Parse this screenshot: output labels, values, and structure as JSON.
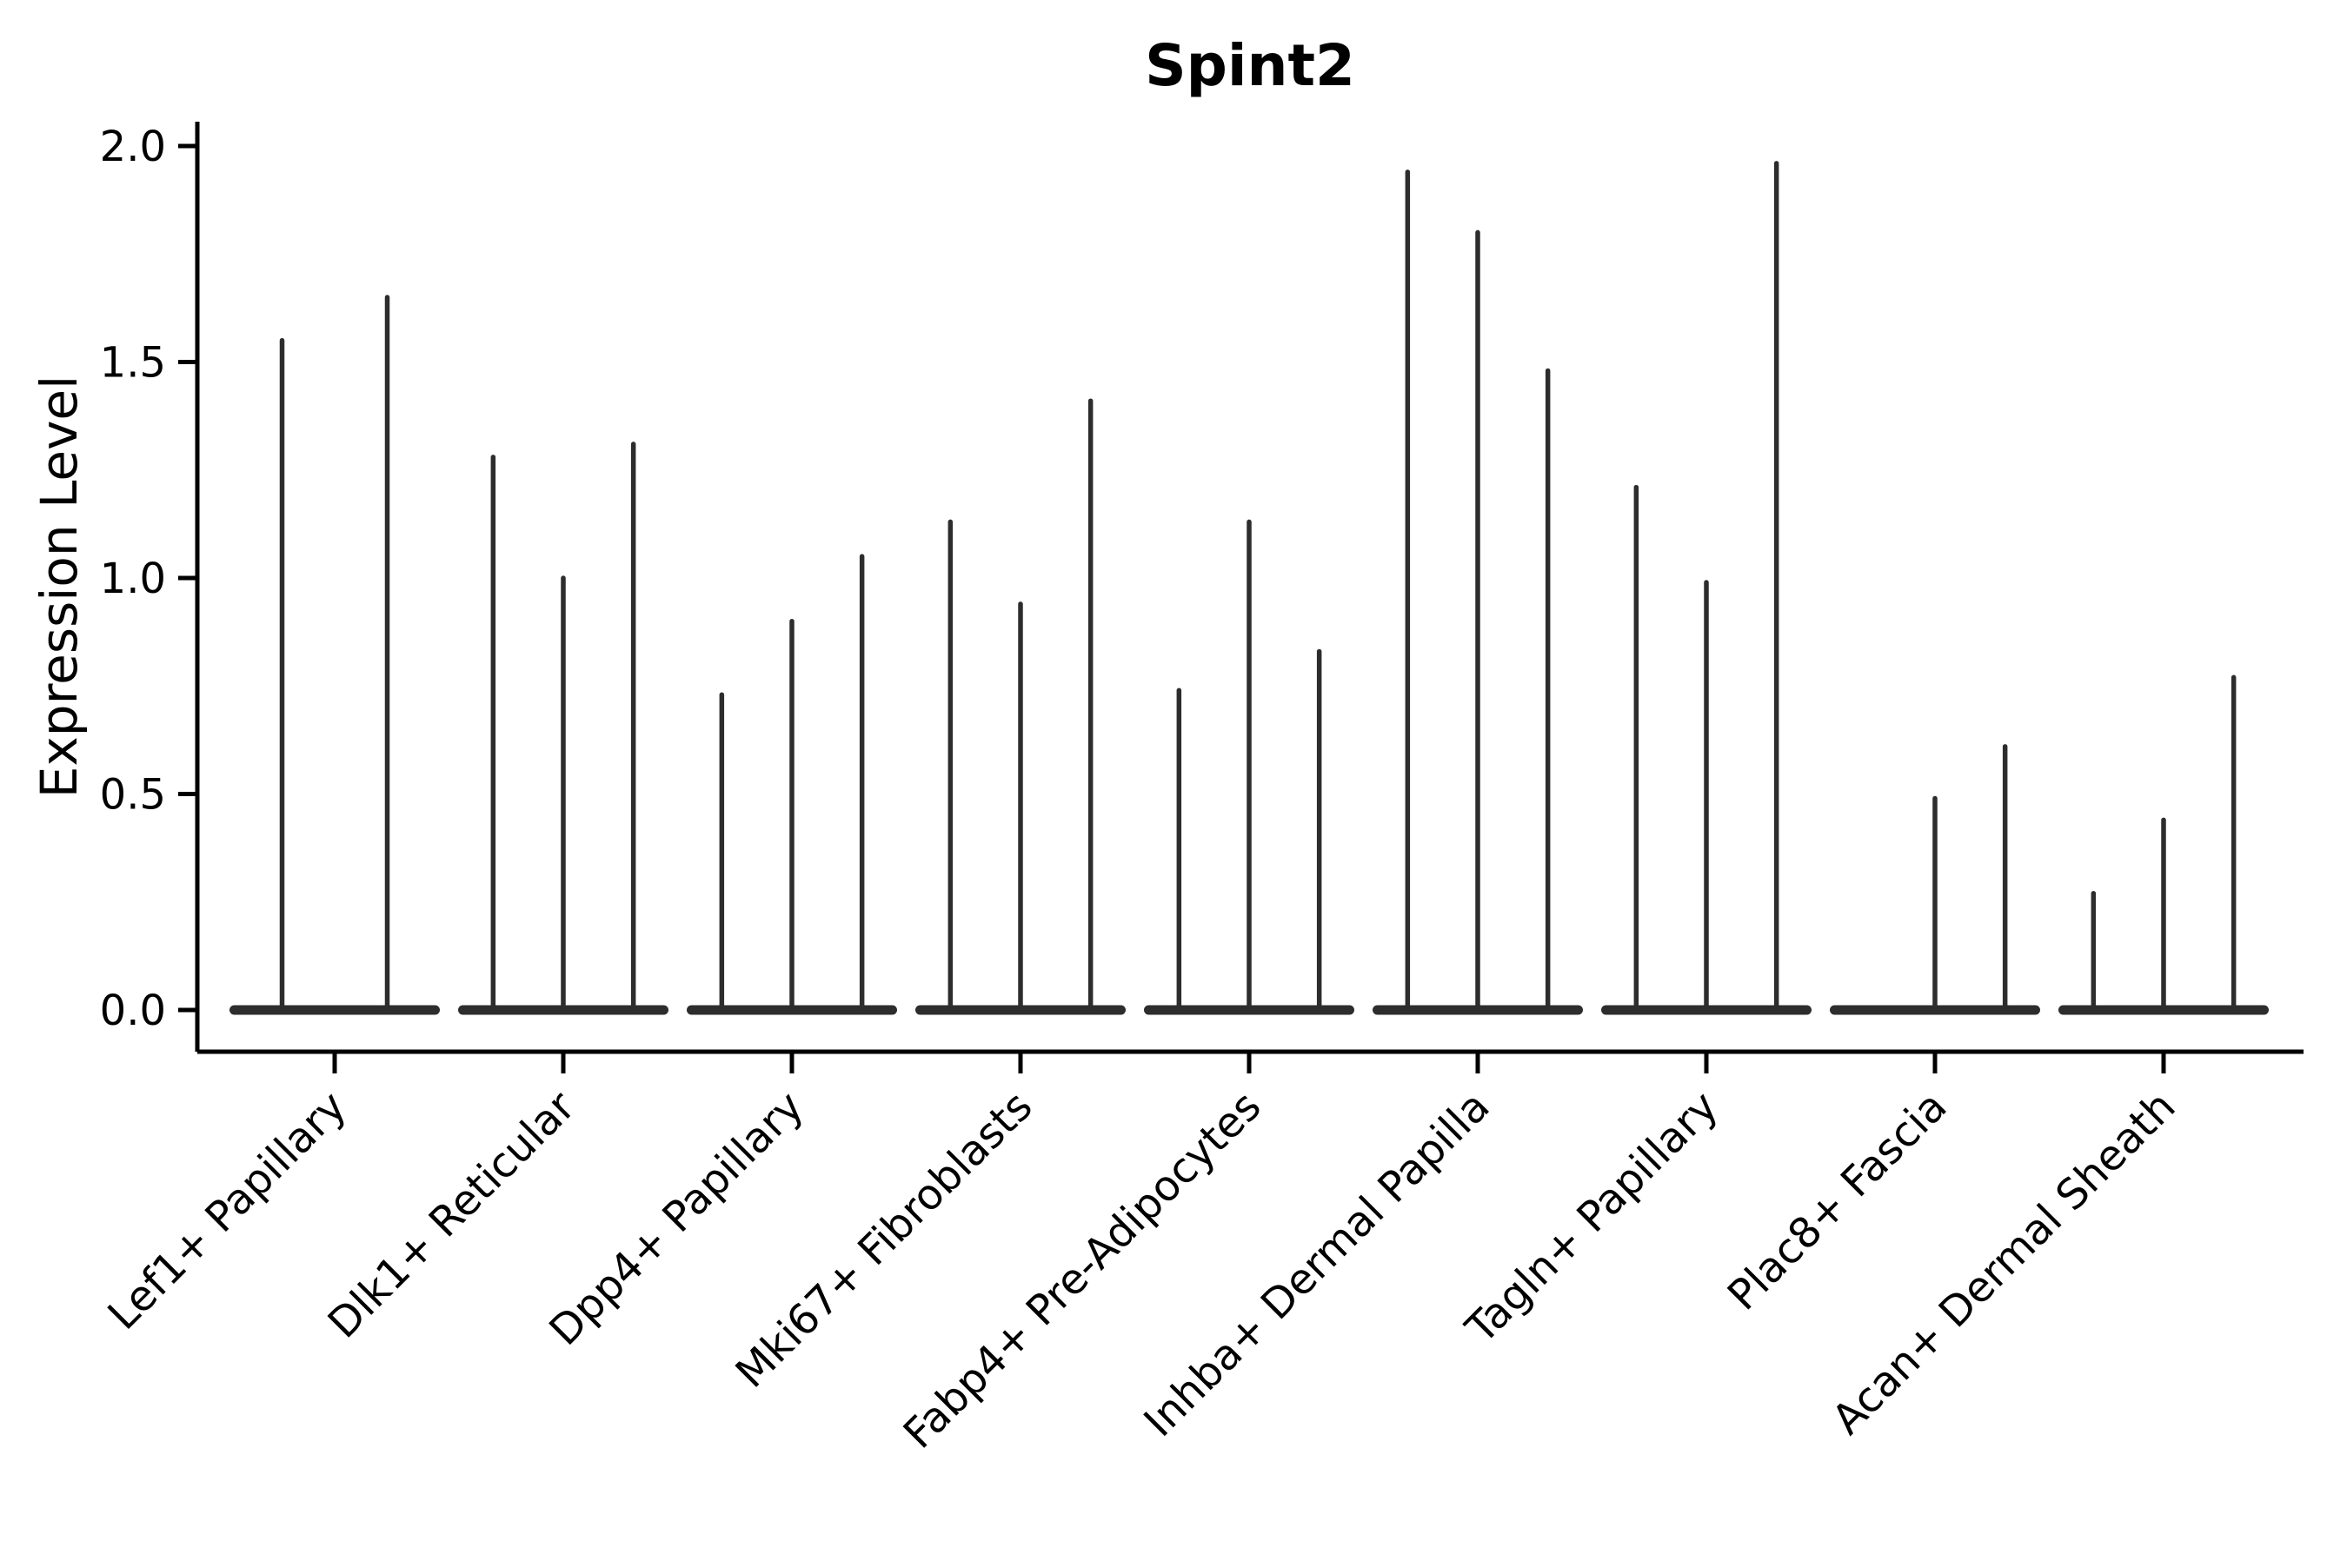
{
  "chart_data": {
    "type": "violin",
    "title": "Spint2",
    "xlabel": "",
    "ylabel": "Expression Level",
    "yticks": [
      0.0,
      0.5,
      1.0,
      1.5,
      2.0
    ],
    "ylim": [
      -0.1,
      2.05
    ],
    "grid": false,
    "legend": "none",
    "background_color": "#ffffff",
    "violin_color": "#2d2d2d",
    "axis_color": "#000000",
    "categories": [
      "Lef1+ Papillary",
      "Dlk1+ Reticular",
      "Dpp4+ Papillary",
      "Mki67+ Fibroblasts",
      "Fabp4+ Pre-Adipocytes",
      "Inhba+ Dermal Papilla",
      "Tagln+ Papillary",
      "Plac8+ Fascia",
      "Acan+ Dermal Sheath"
    ],
    "groups": [
      {
        "category": "Lef1+ Papillary",
        "violin_max_expression": [
          1.55,
          1.65
        ]
      },
      {
        "category": "Dlk1+ Reticular",
        "violin_max_expression": [
          1.28,
          1.0,
          1.31
        ]
      },
      {
        "category": "Dpp4+ Papillary",
        "violin_max_expression": [
          0.73,
          0.9,
          1.05
        ]
      },
      {
        "category": "Mki67+ Fibroblasts",
        "violin_max_expression": [
          1.13,
          0.94,
          1.41
        ]
      },
      {
        "category": "Fabp4+ Pre-Adipocytes",
        "violin_max_expression": [
          0.74,
          1.13,
          0.83
        ]
      },
      {
        "category": "Inhba+ Dermal Papilla",
        "violin_max_expression": [
          1.94,
          1.8,
          1.48
        ]
      },
      {
        "category": "Tagln+ Papillary",
        "violin_max_expression": [
          1.21,
          0.99,
          1.96
        ]
      },
      {
        "category": "Plac8+ Fascia",
        "violin_max_expression": [
          0.0,
          0.49,
          0.61
        ]
      },
      {
        "category": "Acan+ Dermal Sheath",
        "violin_max_expression": [
          0.27,
          0.44,
          0.77
        ]
      }
    ]
  }
}
